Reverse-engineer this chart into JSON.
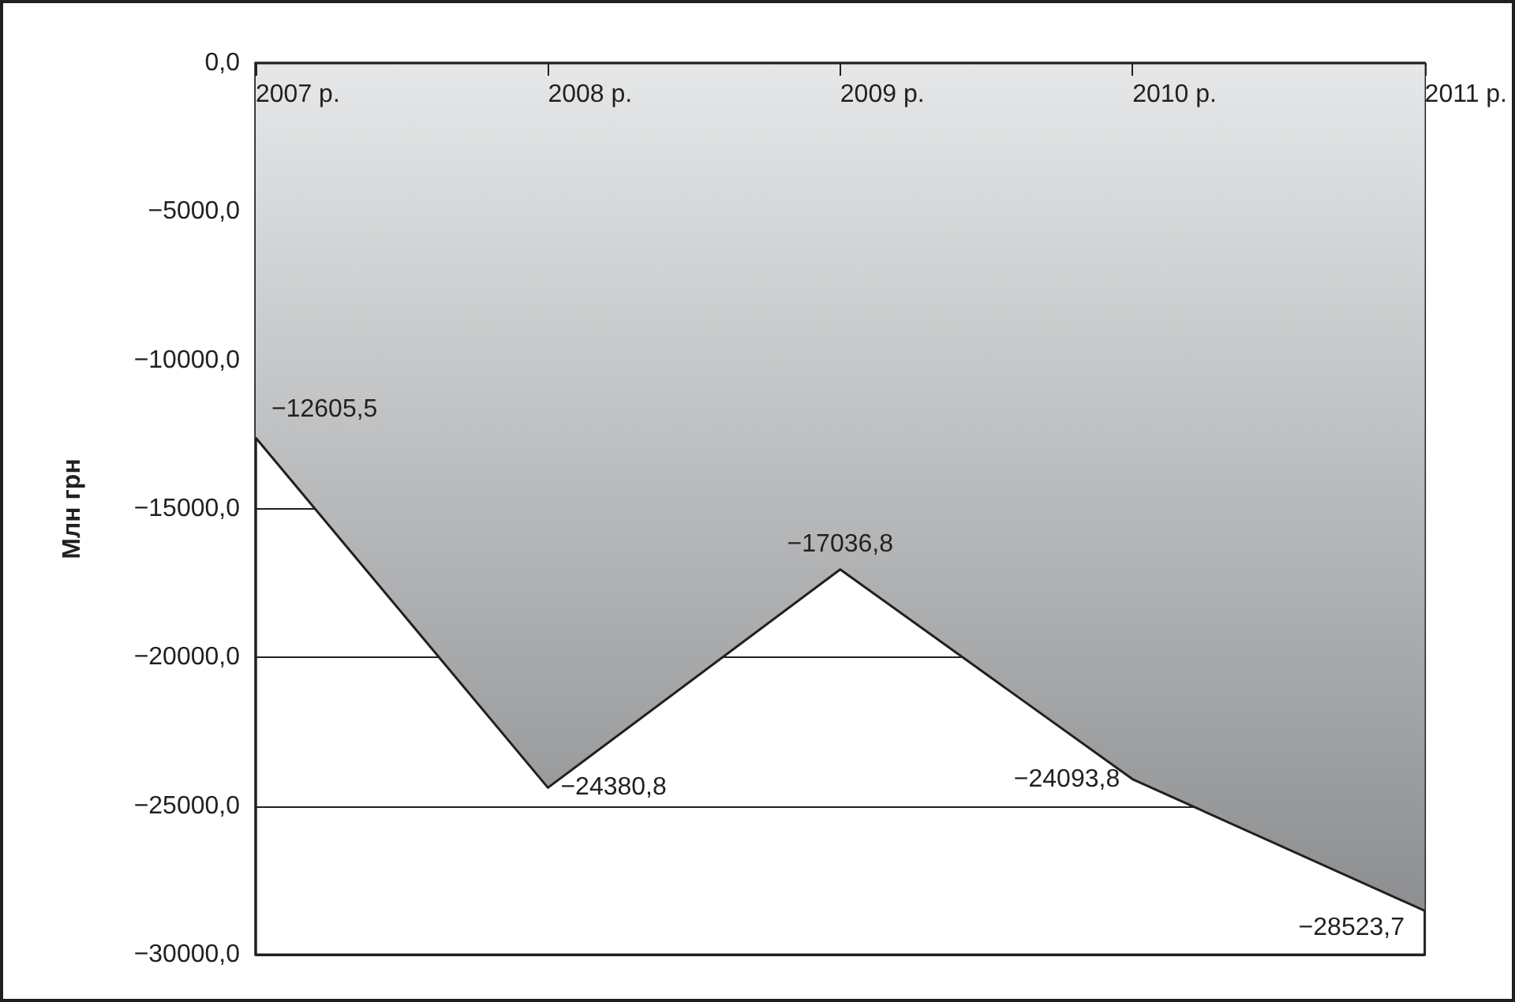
{
  "chart_data": {
    "type": "area",
    "ylabel": "Млн грн",
    "categories": [
      "2007 р.",
      "2008 р.",
      "2009 р.",
      "2010 р.",
      "2011 р."
    ],
    "series": [
      {
        "color": "#231f20",
        "values": [
          -12605.5,
          -24380.8,
          -17036.8,
          -24093.8,
          -28523.7
        ],
        "value_labels": [
          "−12605,5",
          "−24380,8",
          "−17036,8",
          "−24093,8",
          "−28523,7"
        ]
      }
    ],
    "ylim": [
      -30000,
      0
    ],
    "yticks": [
      {
        "value": 0,
        "label": "0,0"
      },
      {
        "value": -5000,
        "label": "−5000,0"
      },
      {
        "value": -10000,
        "label": "−10000,0"
      },
      {
        "value": -15000,
        "label": "−15000,0"
      },
      {
        "value": -20000,
        "label": "−20000,0"
      },
      {
        "value": -25000,
        "label": "−25000,0"
      },
      {
        "value": -30000,
        "label": "−30000,0"
      }
    ],
    "grid": "y"
  }
}
